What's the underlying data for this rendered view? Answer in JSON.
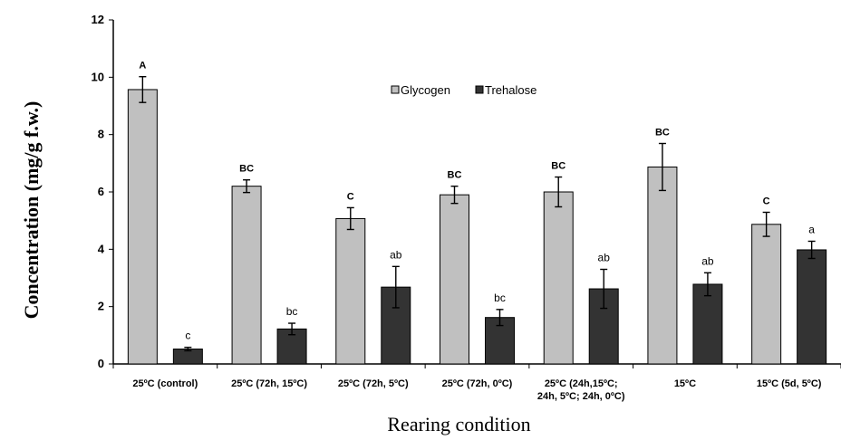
{
  "chart_data": {
    "type": "bar",
    "xlabel": "Rearing condition",
    "ylabel": "Concentration (mg/g f.w.)",
    "ylim": [
      0,
      12
    ],
    "yticks": [
      "0",
      "2",
      "4",
      "6",
      "8",
      "10",
      "12"
    ],
    "categories": [
      [
        "25ºC (control)"
      ],
      [
        "25ºC (72h, 15ºC)"
      ],
      [
        "25ºC (72h, 5ºC)"
      ],
      [
        "25ºC (72h, 0ºC)"
      ],
      [
        "25ºC (24h,15ºC;",
        "24h, 5ºC; 24h, 0ºC)"
      ],
      [
        "15ºC"
      ],
      [
        "15ºC (5d, 5ºC)"
      ]
    ],
    "series": [
      {
        "name": "Glycogen",
        "color": "#c0c0c0",
        "values": [
          9.57,
          6.2,
          5.07,
          5.9,
          6.0,
          6.87,
          4.87
        ],
        "errors": [
          0.45,
          0.22,
          0.38,
          0.3,
          0.52,
          0.82,
          0.42
        ],
        "labels": [
          "A",
          "BC",
          "C",
          "BC",
          "BC",
          "BC",
          "C"
        ]
      },
      {
        "name": "Trehalose",
        "color": "#333333",
        "values": [
          0.52,
          1.22,
          2.68,
          1.62,
          2.62,
          2.78,
          3.98
        ],
        "errors": [
          0.06,
          0.2,
          0.72,
          0.28,
          0.68,
          0.4,
          0.3
        ],
        "labels": [
          "c",
          "bc",
          "ab",
          "bc",
          "ab",
          "ab",
          "a"
        ]
      }
    ],
    "legend_position": "top-center",
    "grid": false
  }
}
